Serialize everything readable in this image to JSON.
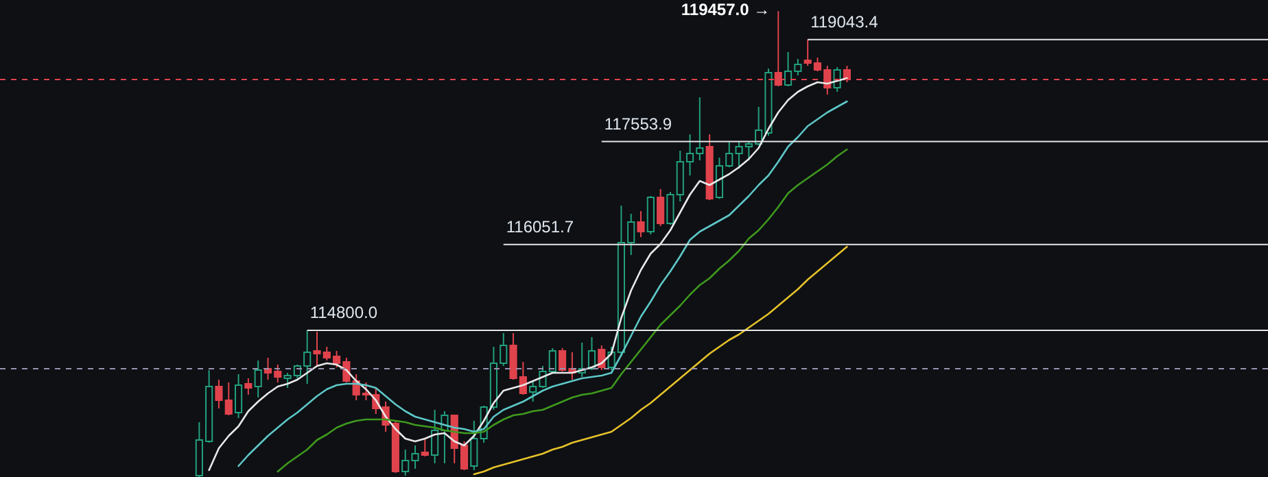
{
  "chart_data": {
    "type": "candlestick",
    "tick_labels": false,
    "categories": [
      null,
      null,
      null,
      null,
      null,
      null,
      null,
      null,
      null,
      null,
      null,
      null,
      null,
      null,
      null,
      null,
      null,
      null,
      null,
      null,
      null,
      null,
      null,
      null,
      null,
      null,
      null,
      null,
      null,
      null,
      null,
      null,
      null,
      null,
      null,
      null,
      null,
      null,
      null,
      null,
      null,
      null,
      null,
      null,
      null,
      null,
      null,
      null,
      null,
      null,
      null,
      null,
      null,
      null,
      null,
      null,
      null,
      null,
      null,
      null,
      null,
      null,
      null,
      null,
      null,
      null,
      null
    ],
    "ylim": [
      112660,
      119620
    ],
    "ohlc": [
      [
        112680,
        113460,
        112660,
        113200
      ],
      [
        113180,
        114220,
        113160,
        113980
      ],
      [
        113980,
        114080,
        113660,
        113780
      ],
      [
        113780,
        114040,
        113560,
        113580
      ],
      [
        113600,
        114160,
        113520,
        114000
      ],
      [
        114020,
        114100,
        113860,
        113960
      ],
      [
        113980,
        114360,
        113820,
        114220
      ],
      [
        114240,
        114400,
        114080,
        114180
      ],
      [
        114200,
        114300,
        114040,
        114120
      ],
      [
        114100,
        114180,
        113960,
        114140
      ],
      [
        114140,
        114300,
        114100,
        114280
      ],
      [
        114280,
        114800,
        114020,
        114480
      ],
      [
        114500,
        114780,
        114280,
        114460
      ],
      [
        114480,
        114560,
        114360,
        114400
      ],
      [
        114420,
        114500,
        114260,
        114320
      ],
      [
        114340,
        114400,
        114040,
        114060
      ],
      [
        114060,
        114160,
        113780,
        113860
      ],
      [
        113880,
        114040,
        113780,
        113860
      ],
      [
        113860,
        113960,
        113580,
        113660
      ],
      [
        113680,
        113760,
        113320,
        113420
      ],
      [
        113440,
        113480,
        112720,
        112740
      ],
      [
        112740,
        113060,
        112680,
        112900
      ],
      [
        112900,
        113120,
        112780,
        113000
      ],
      [
        113020,
        113220,
        112960,
        112980
      ],
      [
        112980,
        113640,
        112860,
        113340
      ],
      [
        113340,
        113620,
        112860,
        113560
      ],
      [
        113560,
        113560,
        112860,
        113080
      ],
      [
        113120,
        113180,
        112760,
        112780
      ],
      [
        112820,
        113480,
        112760,
        113220
      ],
      [
        113220,
        113700,
        113160,
        113680
      ],
      [
        113680,
        114560,
        113640,
        114320
      ],
      [
        114320,
        114760,
        114280,
        114580
      ],
      [
        114580,
        114760,
        114080,
        114100
      ],
      [
        114120,
        114340,
        113860,
        113880
      ],
      [
        113900,
        114060,
        113760,
        113980
      ],
      [
        113980,
        114280,
        113960,
        114200
      ],
      [
        114200,
        114540,
        114180,
        114500
      ],
      [
        114500,
        114540,
        114200,
        114220
      ],
      [
        114240,
        114480,
        114080,
        114180
      ],
      [
        114180,
        114620,
        114120,
        114240
      ],
      [
        114240,
        114700,
        114220,
        114500
      ],
      [
        114520,
        114580,
        114220,
        114260
      ],
      [
        114260,
        114560,
        114220,
        114480
      ],
      [
        114480,
        116620,
        114420,
        116080
      ],
      [
        116080,
        116500,
        115900,
        116380
      ],
      [
        116380,
        116540,
        116160,
        116240
      ],
      [
        116240,
        116760,
        116200,
        116740
      ],
      [
        116740,
        116860,
        116320,
        116360
      ],
      [
        116360,
        116820,
        116340,
        116780
      ],
      [
        116780,
        117420,
        116680,
        117260
      ],
      [
        117260,
        117660,
        117060,
        117380
      ],
      [
        117380,
        118200,
        117280,
        117460
      ],
      [
        117480,
        117660,
        116700,
        116720
      ],
      [
        116740,
        117320,
        116720,
        117200
      ],
      [
        117200,
        117560,
        117180,
        117380
      ],
      [
        117380,
        117560,
        117160,
        117480
      ],
      [
        117480,
        117560,
        117280,
        117520
      ],
      [
        117520,
        118060,
        117500,
        117720
      ],
      [
        117680,
        118620,
        117640,
        118560
      ],
      [
        118560,
        119457.0,
        118360,
        118380
      ],
      [
        118380,
        118860,
        118360,
        118580
      ],
      [
        118580,
        118760,
        118520,
        118680
      ],
      [
        118740,
        119043.4,
        118660,
        118700
      ],
      [
        118700,
        118780,
        118580,
        118600
      ],
      [
        118600,
        118660,
        118240,
        118340
      ],
      [
        118340,
        118640,
        118280,
        118600
      ],
      [
        118600,
        118660,
        118420,
        118460
      ]
    ],
    "series": [
      {
        "type": "line",
        "color": "#e8e8e8",
        "values": [
          null,
          112760,
          113080,
          113260,
          113400,
          113620,
          113760,
          113880,
          113980,
          114020,
          114080,
          114180,
          114280,
          114320,
          114300,
          114220,
          114060,
          113940,
          113780,
          113540,
          113360,
          113220,
          113180,
          113220,
          113280,
          113300,
          113180,
          113120,
          113260,
          113480,
          113740,
          113920,
          113960,
          114000,
          114060,
          114120,
          114180,
          114180,
          114180,
          114220,
          114260,
          114320,
          114460,
          114980,
          115380,
          115680,
          115920,
          116060,
          116260,
          116520,
          116780,
          116980,
          116920,
          117000,
          117080,
          117180,
          117300,
          117460,
          117740,
          117980,
          118160,
          118280,
          118360,
          118420,
          118400,
          118440,
          118480
        ]
      },
      {
        "type": "line",
        "color": "#5ec8c8",
        "values": [
          null,
          null,
          null,
          null,
          112820,
          112980,
          113120,
          113260,
          113380,
          113500,
          113600,
          113720,
          113840,
          113940,
          114000,
          114020,
          114020,
          114000,
          113960,
          113840,
          113720,
          113620,
          113540,
          113500,
          113460,
          113420,
          113380,
          113360,
          113320,
          113360,
          113540,
          113640,
          113700,
          113760,
          113840,
          113920,
          113980,
          114020,
          114060,
          114100,
          114120,
          114140,
          114180,
          114440,
          114720,
          115000,
          115220,
          115460,
          115660,
          115880,
          116120,
          116240,
          116320,
          116400,
          116480,
          116620,
          116760,
          116920,
          117060,
          117260,
          117480,
          117620,
          117780,
          117880,
          117980,
          118060,
          118140
        ]
      },
      {
        "type": "line",
        "color": "#3f9a1e",
        "values": [
          null,
          null,
          null,
          null,
          null,
          null,
          null,
          null,
          112740,
          112860,
          112960,
          113060,
          113200,
          113280,
          113380,
          113440,
          113480,
          113500,
          113500,
          113500,
          113480,
          113460,
          113420,
          113400,
          113380,
          113340,
          113320,
          113300,
          113300,
          113320,
          113420,
          113500,
          113560,
          113580,
          113620,
          113640,
          113700,
          113760,
          113820,
          113860,
          113880,
          113920,
          113960,
          114160,
          114340,
          114520,
          114700,
          114880,
          115020,
          115160,
          115320,
          115460,
          115560,
          115700,
          115820,
          115960,
          116140,
          116260,
          116420,
          116600,
          116800,
          116920,
          117020,
          117120,
          117220,
          117340,
          117440
        ]
      },
      {
        "type": "line",
        "color": "#e6c229",
        "values": [
          null,
          null,
          null,
          null,
          null,
          null,
          null,
          null,
          null,
          null,
          null,
          null,
          null,
          null,
          null,
          null,
          null,
          null,
          null,
          null,
          null,
          null,
          null,
          null,
          null,
          null,
          null,
          null,
          112700,
          112740,
          112800,
          112840,
          112880,
          112920,
          112960,
          113000,
          113060,
          113100,
          113160,
          113200,
          113240,
          113280,
          113320,
          113420,
          113520,
          113640,
          113740,
          113860,
          113980,
          114100,
          114220,
          114340,
          114460,
          114560,
          114660,
          114740,
          114840,
          114940,
          115040,
          115160,
          115280,
          115400,
          115540,
          115660,
          115780,
          115900,
          116020
        ]
      }
    ],
    "ref_lines": [
      {
        "axis": "y",
        "value": 119043.4,
        "label": "119043.4",
        "color": "#e6e6e6"
      },
      {
        "axis": "y",
        "value": 117553.9,
        "label": "117553.9",
        "color": "#e6e6e6"
      },
      {
        "axis": "y",
        "value": 116051.7,
        "label": "116051.7",
        "color": "#e6e6e6"
      },
      {
        "axis": "y",
        "value": 114800.0,
        "label": "114800.0",
        "color": "#e6e6e6"
      },
      {
        "axis": "y",
        "value": 118460,
        "color": "#e0434c",
        "line_style": "dashed"
      },
      {
        "axis": "y",
        "value": 114240,
        "color": "#9a93b0",
        "line_style": "dashed"
      }
    ],
    "annotations": [
      "119457.0 →"
    ]
  }
}
